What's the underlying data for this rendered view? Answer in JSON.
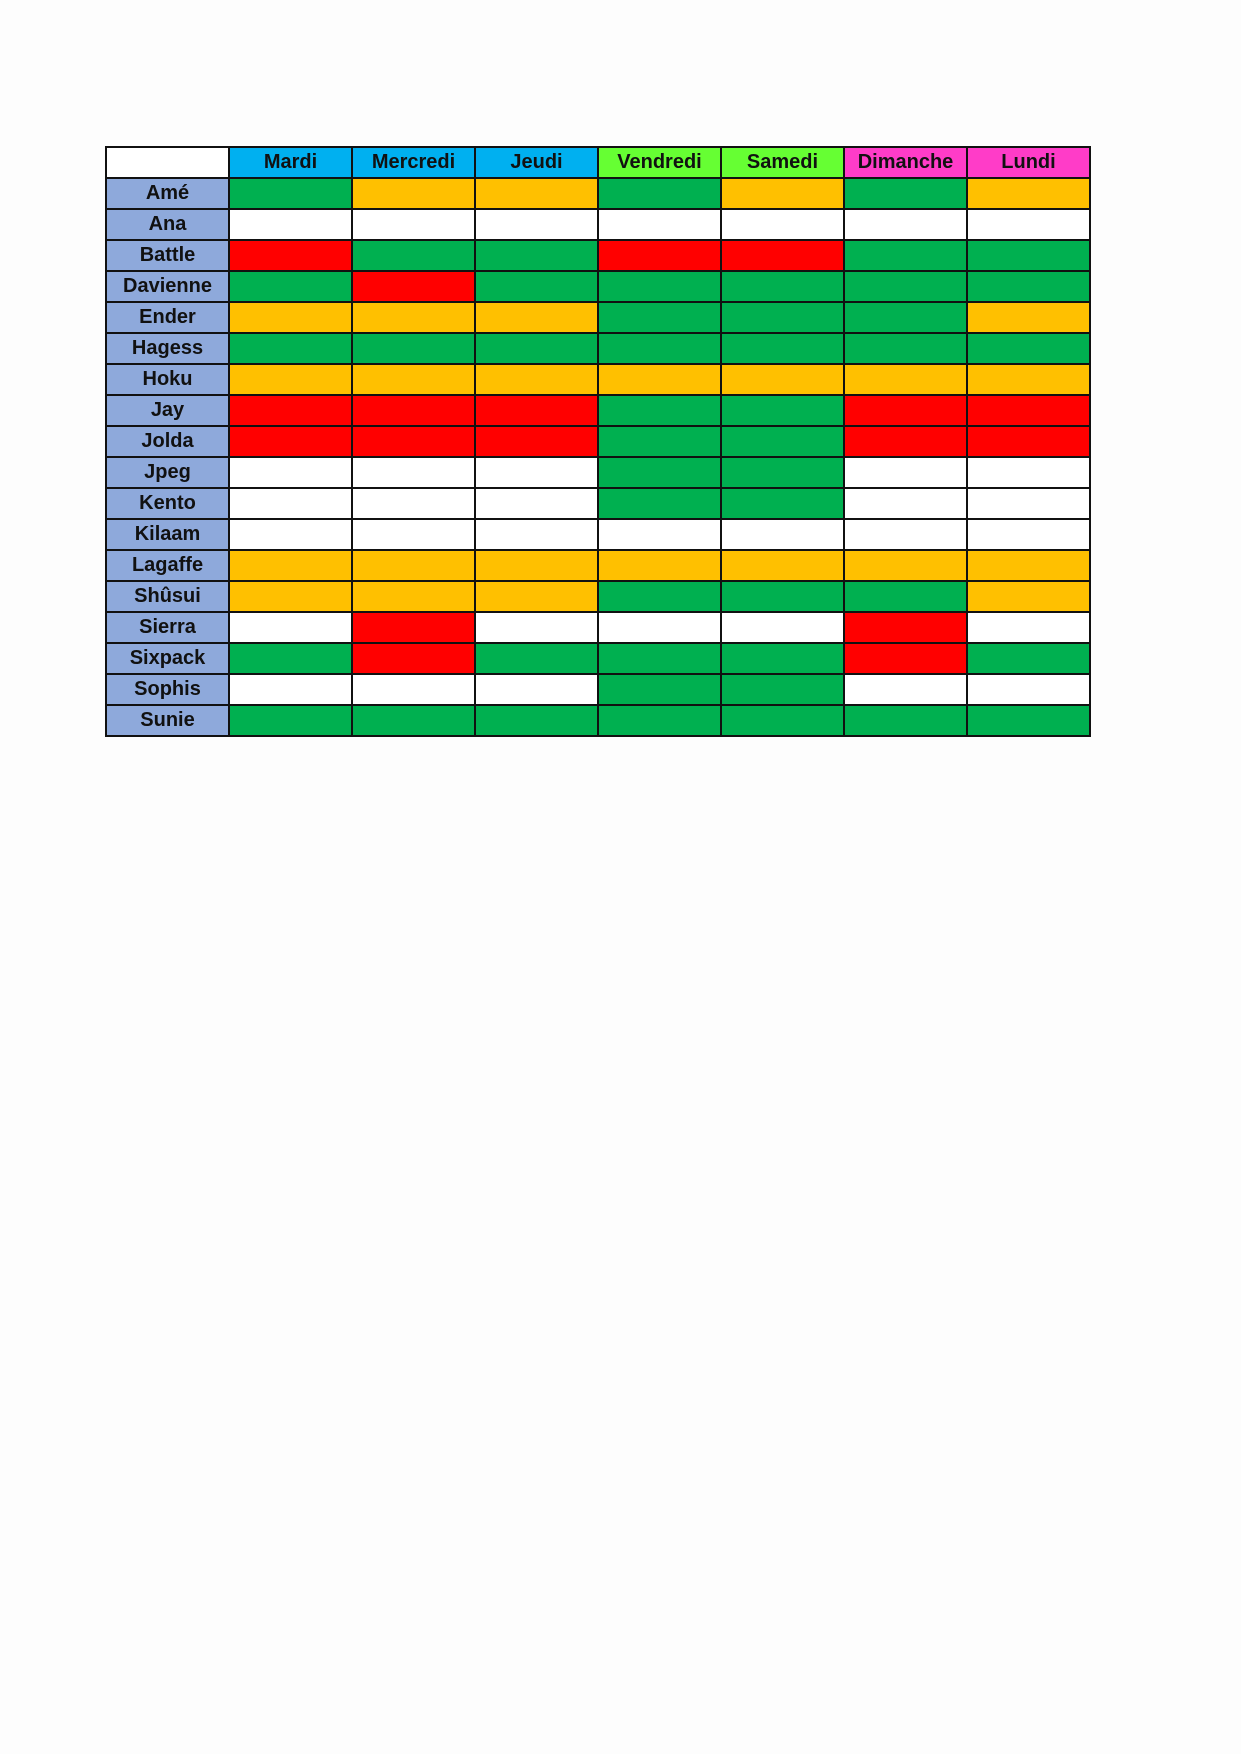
{
  "columns": [
    {
      "label": "Mardi",
      "color": "#00B0F0"
    },
    {
      "label": "Mercredi",
      "color": "#00B0F0"
    },
    {
      "label": "Jeudi",
      "color": "#00B0F0"
    },
    {
      "label": "Vendredi",
      "color": "#66FF33"
    },
    {
      "label": "Samedi",
      "color": "#66FF33"
    },
    {
      "label": "Dimanche",
      "color": "#FF3CC8"
    },
    {
      "label": "Lundi",
      "color": "#FF3CC8"
    }
  ],
  "status_colors": {
    "G": "#00B050",
    "O": "#FFC000",
    "R": "#FF0000",
    "W": "#FFFFFF"
  },
  "rows": [
    {
      "name": "Amé",
      "cells": [
        "G",
        "O",
        "O",
        "G",
        "O",
        "G",
        "O"
      ]
    },
    {
      "name": "Ana",
      "cells": [
        "W",
        "W",
        "W",
        "W",
        "W",
        "W",
        "W"
      ]
    },
    {
      "name": "Battle",
      "cells": [
        "R",
        "G",
        "G",
        "R",
        "R",
        "G",
        "G"
      ]
    },
    {
      "name": "Davienne",
      "cells": [
        "G",
        "R",
        "G",
        "G",
        "G",
        "G",
        "G"
      ]
    },
    {
      "name": "Ender",
      "cells": [
        "O",
        "O",
        "O",
        "G",
        "G",
        "G",
        "O"
      ]
    },
    {
      "name": "Hagess",
      "cells": [
        "G",
        "G",
        "G",
        "G",
        "G",
        "G",
        "G"
      ]
    },
    {
      "name": "Hoku",
      "cells": [
        "O",
        "O",
        "O",
        "O",
        "O",
        "O",
        "O"
      ]
    },
    {
      "name": "Jay",
      "cells": [
        "R",
        "R",
        "R",
        "G",
        "G",
        "R",
        "R"
      ]
    },
    {
      "name": "Jolda",
      "cells": [
        "R",
        "R",
        "R",
        "G",
        "G",
        "R",
        "R"
      ]
    },
    {
      "name": "Jpeg",
      "cells": [
        "W",
        "W",
        "W",
        "G",
        "G",
        "W",
        "W"
      ]
    },
    {
      "name": "Kento",
      "cells": [
        "W",
        "W",
        "W",
        "G",
        "G",
        "W",
        "W"
      ]
    },
    {
      "name": "Kilaam",
      "cells": [
        "W",
        "W",
        "W",
        "W",
        "W",
        "W",
        "W"
      ]
    },
    {
      "name": "Lagaffe",
      "cells": [
        "O",
        "O",
        "O",
        "O",
        "O",
        "O",
        "O"
      ]
    },
    {
      "name": "Shûsui",
      "cells": [
        "O",
        "O",
        "O",
        "G",
        "G",
        "G",
        "O"
      ]
    },
    {
      "name": "Sierra",
      "cells": [
        "W",
        "R",
        "W",
        "W",
        "W",
        "R",
        "W"
      ]
    },
    {
      "name": "Sixpack",
      "cells": [
        "G",
        "R",
        "G",
        "G",
        "G",
        "R",
        "G"
      ]
    },
    {
      "name": "Sophis",
      "cells": [
        "W",
        "W",
        "W",
        "G",
        "G",
        "W",
        "W"
      ]
    },
    {
      "name": "Sunie",
      "cells": [
        "G",
        "G",
        "G",
        "G",
        "G",
        "G",
        "G"
      ]
    }
  ]
}
